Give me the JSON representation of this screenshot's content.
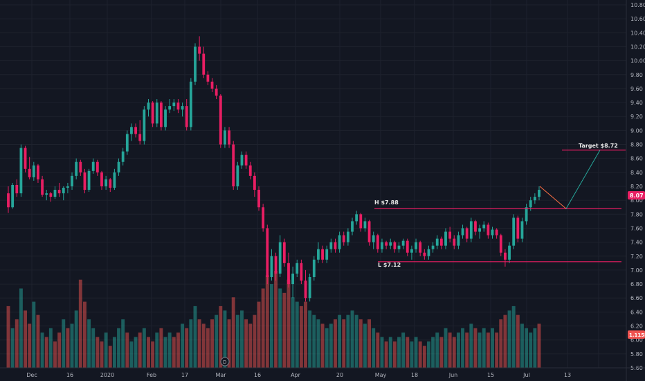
{
  "colors": {
    "background": "#131722",
    "grid": "#1e222d",
    "up": "#26a69a",
    "down": "#ef5350",
    "candle_up": "#26a69a",
    "candle_down": "#e91e63",
    "level_line": "#e91e63",
    "projection": "#26a69a",
    "projection_up": "#ff7043",
    "axis_text": "#b2b5be",
    "price_badge": "#e91e63",
    "volume_badge": "#ef5350"
  },
  "price_axis": {
    "ticks": [
      "10.80",
      "10.60",
      "10.40",
      "10.20",
      "10.00",
      "9.80",
      "9.60",
      "9.40",
      "9.20",
      "9.00",
      "8.80",
      "8.60",
      "8.40",
      "8.20",
      "8.00",
      "7.80",
      "7.60",
      "7.40",
      "7.20",
      "7.00",
      "6.80",
      "6.60",
      "6.40",
      "6.20",
      "6.00",
      "5.80",
      "5.60"
    ],
    "current_price_label": "8.07",
    "volume_label": "1.115M"
  },
  "time_axis": {
    "labels": [
      "Dec",
      "16",
      "2020",
      "Feb",
      "17",
      "Mar",
      "16",
      "Apr",
      "20",
      "May",
      "18",
      "Jun",
      "15",
      "Jul",
      "13"
    ]
  },
  "event_marker": {
    "label": "D"
  },
  "annotations": {
    "high": {
      "label": "H $7.88",
      "value": 7.88
    },
    "low": {
      "label": "L $7.12",
      "value": 7.12
    },
    "target": {
      "label": "Target $8.72",
      "value": 8.72
    }
  },
  "chart_data": {
    "type": "candlestick",
    "title": "",
    "xlabel": "",
    "ylabel": "",
    "ylim": [
      5.6,
      10.8
    ],
    "grid": true,
    "candles": [
      [
        8.1,
        8.2,
        7.82,
        7.9
      ],
      [
        7.9,
        8.25,
        7.88,
        8.22
      ],
      [
        8.22,
        8.3,
        8.05,
        8.1
      ],
      [
        8.1,
        8.8,
        8.05,
        8.75
      ],
      [
        8.75,
        8.78,
        8.4,
        8.45
      ],
      [
        8.45,
        8.62,
        8.3,
        8.33
      ],
      [
        8.33,
        8.55,
        8.28,
        8.5
      ],
      [
        8.5,
        8.52,
        8.25,
        8.3
      ],
      [
        8.3,
        8.35,
        8.05,
        8.08
      ],
      [
        8.08,
        8.15,
        8.0,
        8.1
      ],
      [
        8.1,
        8.12,
        7.98,
        8.05
      ],
      [
        8.05,
        8.2,
        8.02,
        8.15
      ],
      [
        8.15,
        8.25,
        8.05,
        8.1
      ],
      [
        8.1,
        8.2,
        8.0,
        8.18
      ],
      [
        8.18,
        8.25,
        8.1,
        8.2
      ],
      [
        8.2,
        8.4,
        8.15,
        8.35
      ],
      [
        8.35,
        8.6,
        8.3,
        8.55
      ],
      [
        8.55,
        8.58,
        8.35,
        8.4
      ],
      [
        8.4,
        8.45,
        8.1,
        8.15
      ],
      [
        8.15,
        8.45,
        8.12,
        8.42
      ],
      [
        8.42,
        8.6,
        8.38,
        8.55
      ],
      [
        8.55,
        8.58,
        8.35,
        8.4
      ],
      [
        8.4,
        8.42,
        8.15,
        8.2
      ],
      [
        8.2,
        8.35,
        8.15,
        8.3
      ],
      [
        8.3,
        8.32,
        8.12,
        8.18
      ],
      [
        8.18,
        8.45,
        8.15,
        8.4
      ],
      [
        8.4,
        8.6,
        8.35,
        8.55
      ],
      [
        8.55,
        8.75,
        8.5,
        8.7
      ],
      [
        8.7,
        9.0,
        8.65,
        8.95
      ],
      [
        8.95,
        9.1,
        8.85,
        9.05
      ],
      [
        9.05,
        9.1,
        8.9,
        8.95
      ],
      [
        8.95,
        9.15,
        8.8,
        8.85
      ],
      [
        8.85,
        9.35,
        8.8,
        9.3
      ],
      [
        9.3,
        9.45,
        9.2,
        9.4
      ],
      [
        9.4,
        9.42,
        9.05,
        9.1
      ],
      [
        9.1,
        9.45,
        9.05,
        9.4
      ],
      [
        9.4,
        9.42,
        9.0,
        9.05
      ],
      [
        9.05,
        9.35,
        9.0,
        9.3
      ],
      [
        9.3,
        9.45,
        9.25,
        9.35
      ],
      [
        9.35,
        9.45,
        9.28,
        9.4
      ],
      [
        9.4,
        9.45,
        9.25,
        9.3
      ],
      [
        9.3,
        9.4,
        9.2,
        9.35
      ],
      [
        9.35,
        9.45,
        9.0,
        9.05
      ],
      [
        9.05,
        9.75,
        9.0,
        9.7
      ],
      [
        9.7,
        10.25,
        9.65,
        10.2
      ],
      [
        10.2,
        10.35,
        10.0,
        10.1
      ],
      [
        10.1,
        10.2,
        9.75,
        9.8
      ],
      [
        9.8,
        9.85,
        9.65,
        9.7
      ],
      [
        9.7,
        9.75,
        9.55,
        9.6
      ],
      [
        9.6,
        9.65,
        9.45,
        9.5
      ],
      [
        9.5,
        9.52,
        8.75,
        8.8
      ],
      [
        8.8,
        9.05,
        8.75,
        9.0
      ],
      [
        9.0,
        9.05,
        8.75,
        8.8
      ],
      [
        8.8,
        8.85,
        8.15,
        8.2
      ],
      [
        8.2,
        8.55,
        8.15,
        8.5
      ],
      [
        8.5,
        8.7,
        8.45,
        8.65
      ],
      [
        8.65,
        8.7,
        8.45,
        8.5
      ],
      [
        8.5,
        8.55,
        8.3,
        8.35
      ],
      [
        8.35,
        8.4,
        8.05,
        8.15
      ],
      [
        8.15,
        8.2,
        7.85,
        7.9
      ],
      [
        7.9,
        7.95,
        7.55,
        7.6
      ],
      [
        7.6,
        7.65,
        6.8,
        6.9
      ],
      [
        6.9,
        7.3,
        6.85,
        7.2
      ],
      [
        7.2,
        7.25,
        6.85,
        6.95
      ],
      [
        6.95,
        7.5,
        6.9,
        7.4
      ],
      [
        7.4,
        7.45,
        7.05,
        7.1
      ],
      [
        7.1,
        7.25,
        6.75,
        6.8
      ],
      [
        6.8,
        7.05,
        6.6,
        6.95
      ],
      [
        6.95,
        7.15,
        6.9,
        7.1
      ],
      [
        7.1,
        7.15,
        6.8,
        6.85
      ],
      [
        6.85,
        7.0,
        6.55,
        6.6
      ],
      [
        6.6,
        6.95,
        6.55,
        6.9
      ],
      [
        6.9,
        7.2,
        6.85,
        7.15
      ],
      [
        7.15,
        7.4,
        7.1,
        7.3
      ],
      [
        7.3,
        7.35,
        7.1,
        7.15
      ],
      [
        7.15,
        7.35,
        7.1,
        7.3
      ],
      [
        7.3,
        7.45,
        7.25,
        7.4
      ],
      [
        7.4,
        7.45,
        7.25,
        7.3
      ],
      [
        7.3,
        7.55,
        7.25,
        7.5
      ],
      [
        7.5,
        7.55,
        7.35,
        7.4
      ],
      [
        7.4,
        7.6,
        7.35,
        7.55
      ],
      [
        7.55,
        7.75,
        7.5,
        7.7
      ],
      [
        7.7,
        7.85,
        7.65,
        7.8
      ],
      [
        7.8,
        7.82,
        7.55,
        7.6
      ],
      [
        7.6,
        7.75,
        7.55,
        7.7
      ],
      [
        7.7,
        7.72,
        7.35,
        7.4
      ],
      [
        7.4,
        7.55,
        7.3,
        7.5
      ],
      [
        7.5,
        7.52,
        7.25,
        7.3
      ],
      [
        7.3,
        7.45,
        7.25,
        7.4
      ],
      [
        7.4,
        7.42,
        7.3,
        7.35
      ],
      [
        7.35,
        7.45,
        7.3,
        7.4
      ],
      [
        7.4,
        7.42,
        7.25,
        7.3
      ],
      [
        7.3,
        7.4,
        7.25,
        7.35
      ],
      [
        7.35,
        7.45,
        7.3,
        7.42
      ],
      [
        7.42,
        7.45,
        7.2,
        7.25
      ],
      [
        7.25,
        7.35,
        7.15,
        7.3
      ],
      [
        7.3,
        7.45,
        7.25,
        7.4
      ],
      [
        7.4,
        7.42,
        7.2,
        7.25
      ],
      [
        7.25,
        7.3,
        7.15,
        7.2
      ],
      [
        7.2,
        7.35,
        7.15,
        7.3
      ],
      [
        7.3,
        7.4,
        7.25,
        7.35
      ],
      [
        7.35,
        7.5,
        7.3,
        7.45
      ],
      [
        7.45,
        7.48,
        7.3,
        7.35
      ],
      [
        7.35,
        7.6,
        7.3,
        7.55
      ],
      [
        7.55,
        7.62,
        7.4,
        7.45
      ],
      [
        7.45,
        7.5,
        7.3,
        7.35
      ],
      [
        7.35,
        7.55,
        7.3,
        7.5
      ],
      [
        7.5,
        7.65,
        7.45,
        7.6
      ],
      [
        7.6,
        7.62,
        7.4,
        7.45
      ],
      [
        7.45,
        7.75,
        7.4,
        7.7
      ],
      [
        7.7,
        7.72,
        7.5,
        7.55
      ],
      [
        7.55,
        7.65,
        7.45,
        7.6
      ],
      [
        7.6,
        7.7,
        7.55,
        7.65
      ],
      [
        7.65,
        7.68,
        7.45,
        7.5
      ],
      [
        7.5,
        7.62,
        7.45,
        7.58
      ],
      [
        7.58,
        7.6,
        7.45,
        7.5
      ],
      [
        7.5,
        7.52,
        7.2,
        7.25
      ],
      [
        7.25,
        7.3,
        7.05,
        7.15
      ],
      [
        7.15,
        7.4,
        7.1,
        7.35
      ],
      [
        7.35,
        7.8,
        7.3,
        7.75
      ],
      [
        7.75,
        7.78,
        7.4,
        7.45
      ],
      [
        7.45,
        7.75,
        7.4,
        7.7
      ],
      [
        7.7,
        7.95,
        7.65,
        7.9
      ],
      [
        7.9,
        8.05,
        7.85,
        8.0
      ],
      [
        8.0,
        8.1,
        7.95,
        8.05
      ],
      [
        8.05,
        8.2,
        8.0,
        8.15
      ]
    ],
    "volume": [
      [
        0.7,
        0
      ],
      [
        0.45,
        1
      ],
      [
        0.55,
        0
      ],
      [
        0.9,
        1
      ],
      [
        0.65,
        0
      ],
      [
        0.5,
        0
      ],
      [
        0.75,
        1
      ],
      [
        0.6,
        0
      ],
      [
        0.4,
        1
      ],
      [
        0.35,
        0
      ],
      [
        0.45,
        1
      ],
      [
        0.3,
        0
      ],
      [
        0.4,
        0
      ],
      [
        0.55,
        1
      ],
      [
        0.45,
        0
      ],
      [
        0.5,
        1
      ],
      [
        0.65,
        1
      ],
      [
        1.0,
        0
      ],
      [
        0.75,
        0
      ],
      [
        0.55,
        1
      ],
      [
        0.45,
        1
      ],
      [
        0.35,
        0
      ],
      [
        0.3,
        0
      ],
      [
        0.4,
        1
      ],
      [
        0.25,
        0
      ],
      [
        0.35,
        1
      ],
      [
        0.45,
        1
      ],
      [
        0.55,
        1
      ],
      [
        0.4,
        0
      ],
      [
        0.3,
        1
      ],
      [
        0.35,
        1
      ],
      [
        0.4,
        0
      ],
      [
        0.45,
        1
      ],
      [
        0.35,
        0
      ],
      [
        0.3,
        0
      ],
      [
        0.4,
        1
      ],
      [
        0.45,
        0
      ],
      [
        0.35,
        1
      ],
      [
        0.4,
        1
      ],
      [
        0.35,
        0
      ],
      [
        0.4,
        0
      ],
      [
        0.5,
        1
      ],
      [
        0.45,
        0
      ],
      [
        0.55,
        1
      ],
      [
        0.7,
        1
      ],
      [
        0.55,
        0
      ],
      [
        0.5,
        0
      ],
      [
        0.45,
        0
      ],
      [
        0.55,
        0
      ],
      [
        0.6,
        1
      ],
      [
        0.7,
        0
      ],
      [
        0.65,
        1
      ],
      [
        0.55,
        0
      ],
      [
        0.8,
        0
      ],
      [
        0.6,
        1
      ],
      [
        0.65,
        1
      ],
      [
        0.55,
        0
      ],
      [
        0.5,
        0
      ],
      [
        0.6,
        0
      ],
      [
        0.75,
        0
      ],
      [
        0.9,
        0
      ],
      [
        1.05,
        0
      ],
      [
        0.95,
        1
      ],
      [
        1.1,
        0
      ],
      [
        0.9,
        1
      ],
      [
        0.85,
        0
      ],
      [
        1.0,
        0
      ],
      [
        0.8,
        1
      ],
      [
        0.75,
        1
      ],
      [
        0.7,
        0
      ],
      [
        0.75,
        0
      ],
      [
        0.65,
        1
      ],
      [
        0.6,
        1
      ],
      [
        0.55,
        1
      ],
      [
        0.5,
        0
      ],
      [
        0.45,
        1
      ],
      [
        0.5,
        1
      ],
      [
        0.55,
        0
      ],
      [
        0.6,
        1
      ],
      [
        0.55,
        0
      ],
      [
        0.6,
        1
      ],
      [
        0.65,
        1
      ],
      [
        0.6,
        1
      ],
      [
        0.55,
        0
      ],
      [
        0.5,
        1
      ],
      [
        0.55,
        0
      ],
      [
        0.45,
        1
      ],
      [
        0.4,
        0
      ],
      [
        0.35,
        1
      ],
      [
        0.3,
        0
      ],
      [
        0.35,
        1
      ],
      [
        0.3,
        0
      ],
      [
        0.35,
        1
      ],
      [
        0.4,
        1
      ],
      [
        0.35,
        0
      ],
      [
        0.3,
        1
      ],
      [
        0.35,
        1
      ],
      [
        0.3,
        0
      ],
      [
        0.25,
        0
      ],
      [
        0.3,
        1
      ],
      [
        0.35,
        1
      ],
      [
        0.4,
        1
      ],
      [
        0.35,
        0
      ],
      [
        0.45,
        1
      ],
      [
        0.4,
        0
      ],
      [
        0.35,
        0
      ],
      [
        0.4,
        1
      ],
      [
        0.45,
        1
      ],
      [
        0.4,
        0
      ],
      [
        0.5,
        1
      ],
      [
        0.45,
        0
      ],
      [
        0.4,
        1
      ],
      [
        0.45,
        1
      ],
      [
        0.4,
        0
      ],
      [
        0.45,
        1
      ],
      [
        0.4,
        0
      ],
      [
        0.55,
        0
      ],
      [
        0.6,
        0
      ],
      [
        0.65,
        1
      ],
      [
        0.7,
        1
      ],
      [
        0.6,
        0
      ],
      [
        0.5,
        1
      ],
      [
        0.45,
        1
      ],
      [
        0.4,
        1
      ],
      [
        0.45,
        1
      ],
      [
        0.5,
        0
      ]
    ],
    "projection": [
      [
        7.9
      ],
      [
        7.9
      ],
      [
        8.72
      ]
    ]
  }
}
